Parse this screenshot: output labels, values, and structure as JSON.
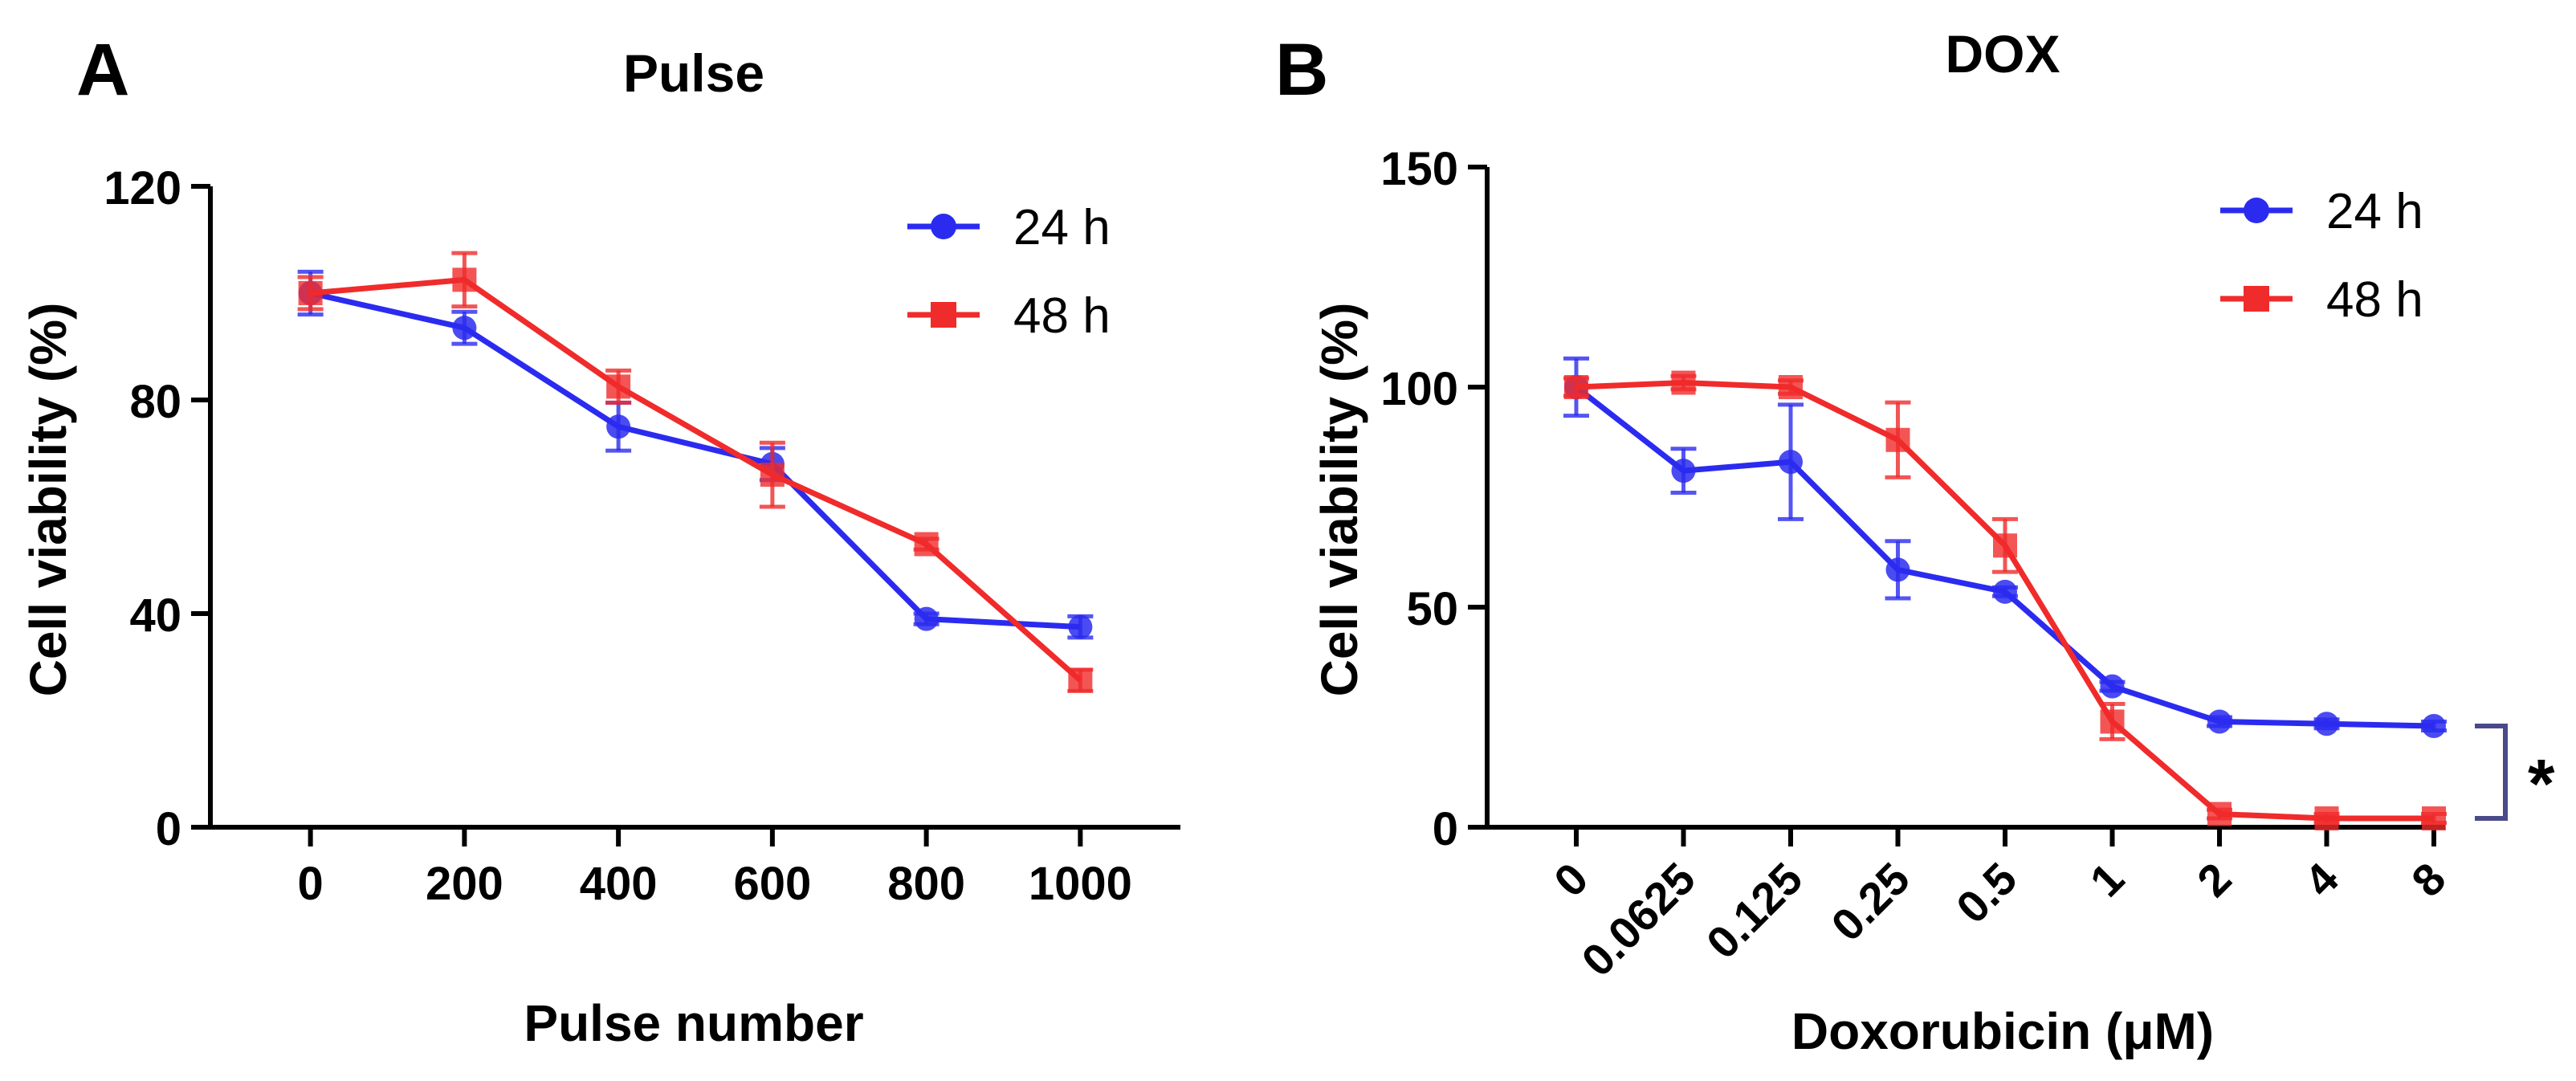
{
  "chart_data": [
    {
      "type": "line",
      "panel_label": "A",
      "title": "Pulse",
      "xlabel": "Pulse number",
      "ylabel": "Cell viability (%)",
      "x": [
        0,
        200,
        400,
        600,
        800,
        1000
      ],
      "x_tick_labels": [
        "0",
        "200",
        "400",
        "600",
        "800",
        "1000"
      ],
      "ylim": [
        0,
        120
      ],
      "y_ticks": [
        0,
        40,
        80,
        120
      ],
      "y_tick_labels": [
        "0",
        "40",
        "80",
        "120"
      ],
      "legend_position": "top-right",
      "series": [
        {
          "name": "24 h",
          "color": "#2b2bf0",
          "marker": "circle",
          "values": [
            100,
            93.5,
            75,
            68,
            39,
            37.5
          ],
          "errors": [
            4,
            3,
            4.5,
            3,
            1,
            2
          ]
        },
        {
          "name": "48 h",
          "color": "#f02b2b",
          "marker": "square",
          "values": [
            100,
            102.5,
            82.5,
            66,
            53,
            27.5
          ],
          "errors": [
            3,
            5,
            3,
            6,
            1,
            2
          ]
        }
      ]
    },
    {
      "type": "line",
      "panel_label": "B",
      "title": "DOX",
      "xlabel": "Doxorubicin (μM)",
      "ylabel": "Cell viability (%)",
      "categories": [
        "0",
        "0.0625",
        "0.125",
        "0.25",
        "0.5",
        "1",
        "2",
        "4",
        "8"
      ],
      "ylim": [
        0,
        150
      ],
      "y_ticks": [
        0,
        50,
        100,
        150
      ],
      "y_tick_labels": [
        "0",
        "50",
        "100",
        "150"
      ],
      "legend_position": "top-right",
      "annotation": "*",
      "series": [
        {
          "name": "24 h",
          "color": "#2b2bf0",
          "marker": "circle",
          "values": [
            100,
            81,
            83,
            58.5,
            53.5,
            32,
            24,
            23.5,
            23
          ],
          "errors": [
            6.5,
            5,
            13,
            6.5,
            1,
            1,
            1,
            1,
            1
          ]
        },
        {
          "name": "48 h",
          "color": "#f02b2b",
          "marker": "square",
          "values": [
            100,
            101,
            100,
            88,
            64,
            24,
            3,
            2,
            2
          ],
          "errors": [
            2,
            1.5,
            1.5,
            8.5,
            6,
            4,
            1,
            1,
            1
          ]
        }
      ]
    }
  ]
}
